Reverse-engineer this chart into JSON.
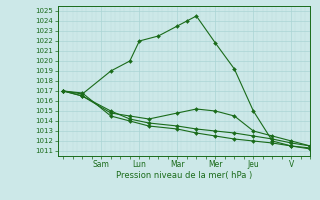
{
  "xlabel": "Pression niveau de la mer( hPa )",
  "background_color": "#cce8e8",
  "grid_major_color": "#aad4d4",
  "grid_minor_color": "#bbdddd",
  "line_color": "#1a6b1a",
  "ylim": [
    1010.5,
    1025.5
  ],
  "yticks": [
    1011,
    1012,
    1013,
    1014,
    1015,
    1016,
    1017,
    1018,
    1019,
    1020,
    1021,
    1022,
    1023,
    1024,
    1025
  ],
  "day_labels": [
    "Sam",
    "Lun",
    "Mar",
    "Mer",
    "Jeu",
    "V"
  ],
  "day_positions": [
    2.0,
    4.0,
    6.0,
    8.0,
    10.0,
    12.0
  ],
  "xlim": [
    -0.3,
    13.0
  ],
  "series": [
    {
      "x": [
        0.0,
        1.0,
        2.5,
        3.5,
        4.0,
        5.0,
        6.0,
        6.5,
        7.0,
        8.0,
        9.0,
        10.0,
        11.0,
        12.0,
        13.0
      ],
      "y": [
        1017.0,
        1016.7,
        1019.0,
        1020.0,
        1022.0,
        1022.5,
        1023.5,
        1024.0,
        1024.5,
        1021.8,
        1019.2,
        1015.0,
        1012.0,
        1011.5,
        1011.3
      ]
    },
    {
      "x": [
        0.0,
        1.0,
        2.5,
        3.5,
        4.5,
        6.0,
        7.0,
        8.0,
        9.0,
        10.0,
        11.0,
        12.0,
        13.0
      ],
      "y": [
        1017.0,
        1016.5,
        1014.8,
        1014.5,
        1014.2,
        1014.8,
        1015.2,
        1015.0,
        1014.5,
        1013.0,
        1012.5,
        1012.0,
        1011.5
      ]
    },
    {
      "x": [
        0.0,
        1.0,
        2.5,
        3.5,
        4.5,
        6.0,
        7.0,
        8.0,
        9.0,
        10.0,
        11.0,
        12.0,
        13.0
      ],
      "y": [
        1017.0,
        1016.5,
        1015.0,
        1014.2,
        1013.8,
        1013.5,
        1013.2,
        1013.0,
        1012.8,
        1012.5,
        1012.2,
        1011.8,
        1011.5
      ]
    },
    {
      "x": [
        0.0,
        1.0,
        2.5,
        3.5,
        4.5,
        6.0,
        7.0,
        8.0,
        9.0,
        10.0,
        11.0,
        12.0,
        13.0
      ],
      "y": [
        1017.0,
        1016.8,
        1014.5,
        1014.0,
        1013.5,
        1013.2,
        1012.8,
        1012.5,
        1012.2,
        1012.0,
        1011.8,
        1011.5,
        1011.2
      ]
    }
  ]
}
